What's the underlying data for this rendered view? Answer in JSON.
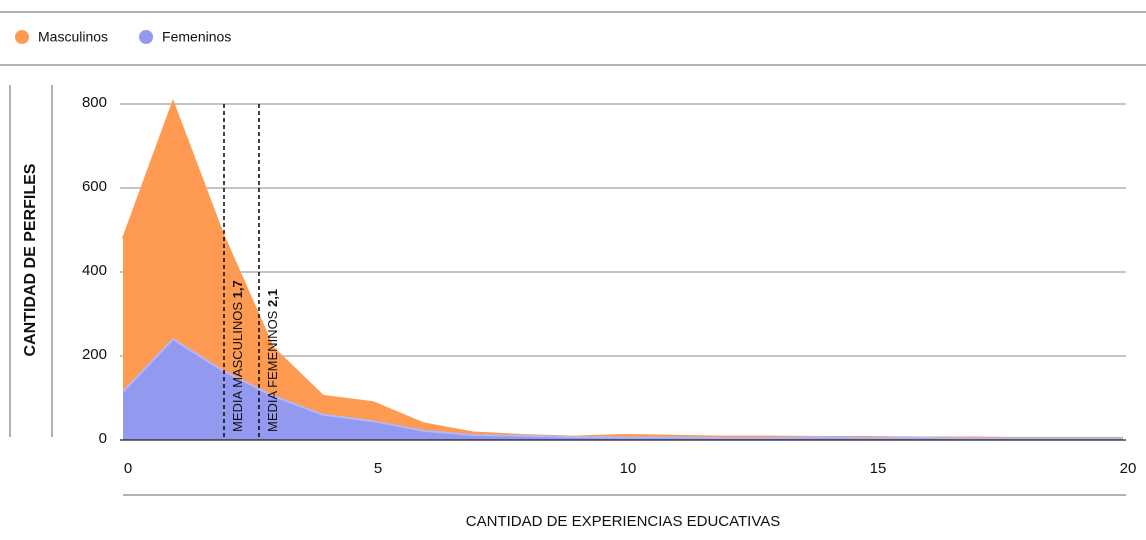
{
  "chart_data": {
    "type": "area",
    "x": [
      0,
      1,
      2,
      3,
      4,
      5,
      6,
      7,
      8,
      9,
      10,
      11,
      12,
      13,
      14,
      15,
      16,
      17,
      18,
      19,
      20
    ],
    "series": [
      {
        "name": "Masculinos",
        "color": "#ff9a52",
        "values": [
          480,
          805,
          490,
          220,
          105,
          90,
          40,
          18,
          12,
          8,
          12,
          10,
          8,
          8,
          7,
          7,
          6,
          6,
          5,
          5,
          5
        ]
      },
      {
        "name": "Femeninos",
        "color": "#9499f0",
        "values": [
          115,
          240,
          165,
          105,
          60,
          45,
          22,
          12,
          10,
          7,
          6,
          6,
          5,
          5,
          6,
          5,
          5,
          4,
          4,
          4,
          4
        ]
      }
    ],
    "xlim": [
      0,
      20
    ],
    "xticks": [
      0,
      5,
      10,
      15,
      20
    ],
    "ylim": [
      0,
      800
    ],
    "yticks": [
      0,
      200,
      400,
      600,
      800
    ],
    "grid": true,
    "xlabel": "CANTIDAD DE EXPERIENCIAS EDUCATIVAS",
    "ylabel": "CANTIDAD DE PERFILES",
    "annotations": [
      {
        "text": "MEDIA MASCULINOS",
        "label": "1,7",
        "x": 2.02
      },
      {
        "text": "MEDIA FEMENINOS",
        "label": "2,1",
        "x": 2.72
      }
    ]
  }
}
